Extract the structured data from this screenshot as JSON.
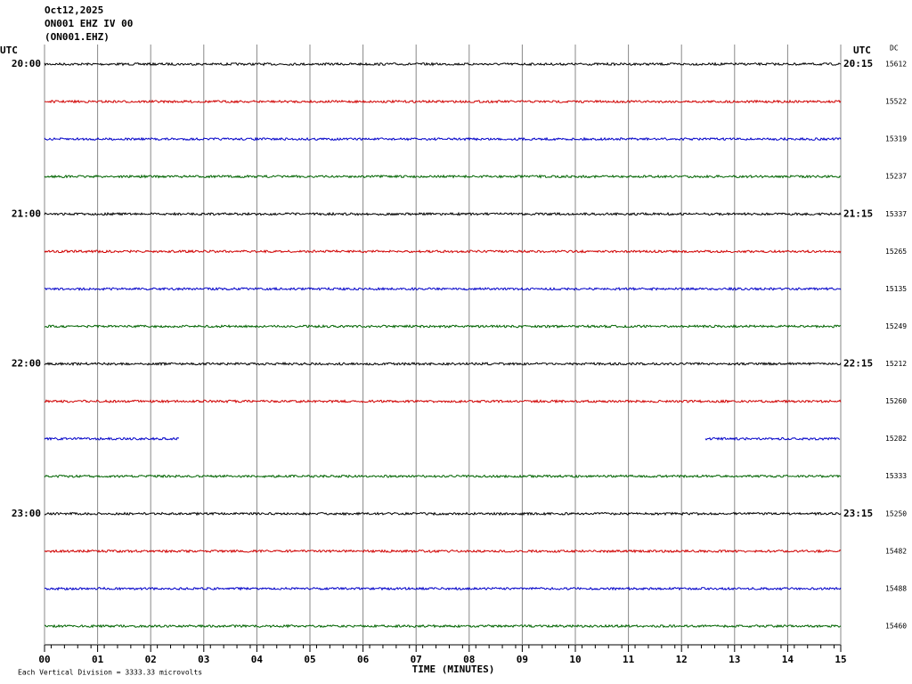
{
  "chart_data": {
    "type": "helicorder",
    "header": [
      "Oct12,2025",
      "ON001 EHZ IV 00",
      "(ON001.EHZ)"
    ],
    "left_axis_title": "UTC",
    "right_axis_title": "UTC",
    "dc_title": "DC",
    "xlabel": "TIME (MINUTES)",
    "footnote": "Each Vertical Division = 3333.33 microvolts",
    "xlim": [
      0,
      15
    ],
    "xticks": [
      {
        "value": 0,
        "label": "00"
      },
      {
        "value": 1,
        "label": "01"
      },
      {
        "value": 2,
        "label": "02"
      },
      {
        "value": 3,
        "label": "03"
      },
      {
        "value": 4,
        "label": "04"
      },
      {
        "value": 5,
        "label": "05"
      },
      {
        "value": 6,
        "label": "06"
      },
      {
        "value": 7,
        "label": "07"
      },
      {
        "value": 8,
        "label": "08"
      },
      {
        "value": 9,
        "label": "09"
      },
      10,
      11,
      12,
      13,
      14,
      15
    ],
    "rows": [
      {
        "color": "#000000",
        "left_label": "20:00",
        "right_label": "20:15",
        "dc": 15612
      },
      {
        "color": "#d00000",
        "dc": 15522
      },
      {
        "color": "#0000c8",
        "dc": 15319
      },
      {
        "color": "#006400",
        "dc": 15237
      },
      {
        "color": "#000000",
        "left_label": "21:00",
        "right_label": "21:15",
        "dc": 15337
      },
      {
        "color": "#d00000",
        "dc": 15265
      },
      {
        "color": "#0000c8",
        "dc": 15135
      },
      {
        "color": "#006400",
        "dc": 15249
      },
      {
        "color": "#000000",
        "left_label": "22:00",
        "right_label": "22:15",
        "dc": 15212
      },
      {
        "color": "#d00000",
        "dc": 15260
      },
      {
        "color": "#0000c8",
        "dc": 15282,
        "segments": [
          [
            0,
            2.55
          ],
          [
            12.45,
            15
          ]
        ]
      },
      {
        "color": "#006400",
        "dc": 15333
      },
      {
        "color": "#000000",
        "left_label": "23:00",
        "right_label": "23:15",
        "dc": 15250
      },
      {
        "color": "#d00000",
        "dc": 15482
      },
      {
        "color": "#0000c8",
        "dc": 15488
      },
      {
        "color": "#006400",
        "dc": 15460
      }
    ]
  }
}
